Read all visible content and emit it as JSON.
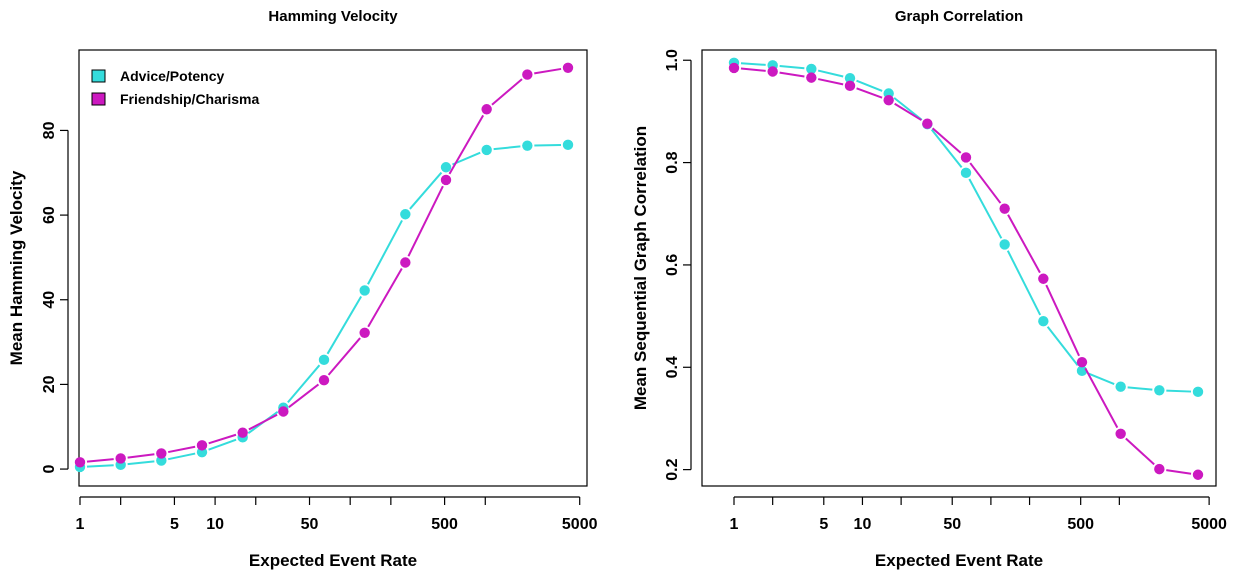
{
  "chart_data": [
    {
      "type": "line",
      "title": "Hamming Velocity",
      "xlabel": "Expected Event Rate",
      "ylabel": "Mean Hamming Velocity",
      "x_scale": "log",
      "xlim": [
        1,
        5000
      ],
      "ylim": [
        0,
        95
      ],
      "x_ticks": [
        1,
        2,
        5,
        10,
        20,
        50,
        100,
        200,
        500,
        1000,
        5000
      ],
      "x_tick_labels": [
        "1",
        "",
        "5",
        "10",
        "",
        "50",
        "",
        "",
        "500",
        "",
        "5000"
      ],
      "y_ticks": [
        0,
        20,
        40,
        60,
        80
      ],
      "y_tick_labels": [
        "0",
        "20",
        "40",
        "60",
        "80"
      ],
      "legend": "top-left",
      "x": [
        1,
        2,
        4,
        8,
        16,
        32,
        64,
        128,
        256,
        512,
        1024,
        2048,
        4096
      ],
      "series": [
        {
          "name": "Advice/Potency",
          "color": "#34dcdc",
          "values": [
            0.5,
            1.0,
            2.0,
            4.0,
            7.5,
            14.5,
            25.8,
            42.2,
            60.2,
            71.3,
            75.4,
            76.4,
            76.6
          ]
        },
        {
          "name": "Friendship/Charisma",
          "color": "#cc19c0",
          "values": [
            1.6,
            2.5,
            3.7,
            5.6,
            8.6,
            13.6,
            21.0,
            32.2,
            48.8,
            68.3,
            85.0,
            93.2,
            94.8
          ]
        }
      ]
    },
    {
      "type": "line",
      "title": "Graph Correlation",
      "xlabel": "Expected Event Rate",
      "ylabel": "Mean Sequential Graph Correlation",
      "x_scale": "log",
      "xlim": [
        1,
        5000
      ],
      "ylim": [
        0.19,
        1.0
      ],
      "x_ticks": [
        1,
        2,
        5,
        10,
        20,
        50,
        100,
        200,
        500,
        1000,
        5000
      ],
      "x_tick_labels": [
        "1",
        "",
        "5",
        "10",
        "",
        "50",
        "",
        "",
        "500",
        "",
        "5000"
      ],
      "y_ticks": [
        0.2,
        0.4,
        0.6,
        0.8,
        1.0
      ],
      "y_tick_labels": [
        "0.2",
        "0.4",
        "0.6",
        "0.8",
        "1.0"
      ],
      "x": [
        1,
        2,
        4,
        8,
        16,
        32,
        64,
        128,
        256,
        512,
        1024,
        2048,
        4096
      ],
      "series": [
        {
          "name": "Advice/Potency",
          "color": "#34dcdc",
          "values": [
            0.995,
            0.99,
            0.983,
            0.965,
            0.935,
            0.875,
            0.78,
            0.64,
            0.49,
            0.393,
            0.362,
            0.355,
            0.352
          ]
        },
        {
          "name": "Friendship/Charisma",
          "color": "#cc19c0",
          "values": [
            0.985,
            0.978,
            0.966,
            0.95,
            0.922,
            0.876,
            0.81,
            0.71,
            0.573,
            0.41,
            0.27,
            0.201,
            0.19
          ]
        }
      ]
    }
  ]
}
